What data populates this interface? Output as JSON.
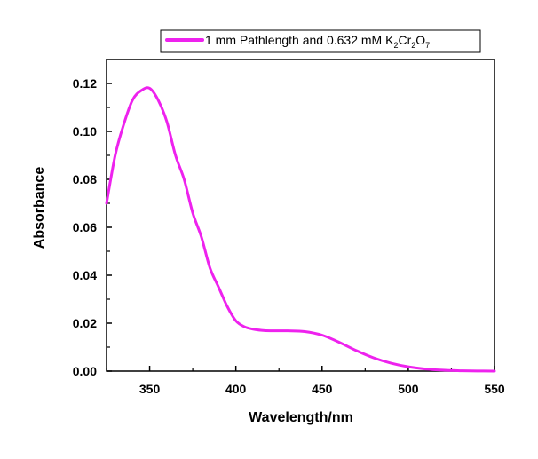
{
  "chart_data": {
    "type": "line",
    "xlabel": "Wavelength/nm",
    "ylabel": "Absorbance",
    "xlim": [
      325,
      550
    ],
    "ylim": [
      0.0,
      0.12
    ],
    "xticks": [
      350,
      400,
      450,
      500,
      550
    ],
    "xtick_labels": [
      "350",
      "400",
      "450",
      "500",
      "550"
    ],
    "yticks": [
      0.0,
      0.02,
      0.04,
      0.06,
      0.08,
      0.1,
      0.12
    ],
    "ytick_labels": [
      "0.00",
      "0.02",
      "0.04",
      "0.06",
      "0.08",
      "0.10",
      "0.12"
    ],
    "grid": false,
    "legend_position": "top-right",
    "legend": {
      "text_main": "1 mm Pathlength and 0.632 mM K",
      "sub1": "2",
      "mid1": "Cr",
      "sub2": "2",
      "mid2": "O",
      "sub3": "7"
    },
    "series": [
      {
        "name": "1 mm Pathlength and 0.632 mM K2Cr2O7",
        "color": "#ee22ee",
        "x": [
          325,
          330,
          335,
          340,
          345,
          350,
          355,
          360,
          365,
          370,
          375,
          380,
          385,
          390,
          395,
          400,
          405,
          410,
          415,
          420,
          430,
          440,
          450,
          460,
          470,
          480,
          490,
          500,
          510,
          520,
          530,
          540,
          550
        ],
        "y": [
          0.07,
          0.09,
          0.103,
          0.113,
          0.117,
          0.118,
          0.113,
          0.104,
          0.09,
          0.08,
          0.066,
          0.056,
          0.043,
          0.035,
          0.027,
          0.021,
          0.0185,
          0.0175,
          0.017,
          0.0168,
          0.0168,
          0.0165,
          0.015,
          0.012,
          0.0085,
          0.0055,
          0.0033,
          0.0018,
          0.0009,
          0.0004,
          0.00015,
          5e-05,
          0.0
        ]
      }
    ]
  }
}
